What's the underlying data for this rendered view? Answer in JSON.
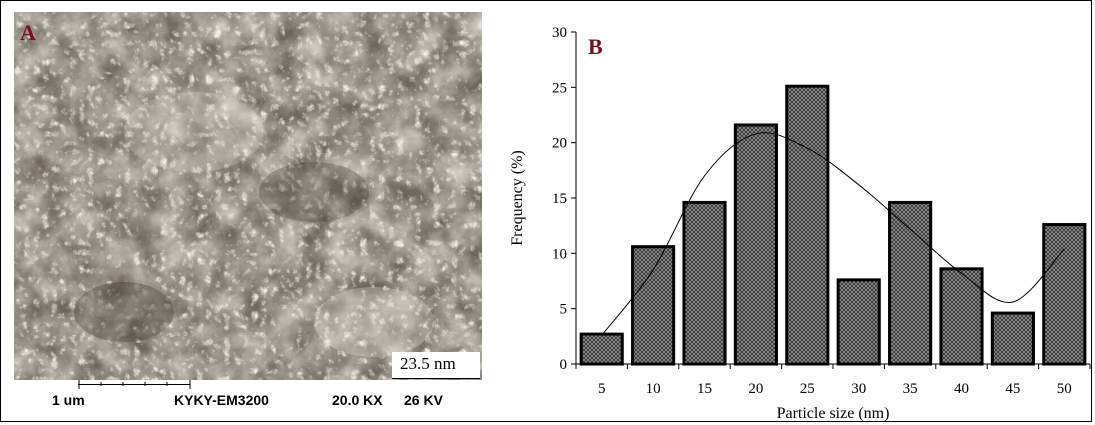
{
  "panel_a": {
    "label": "A",
    "measurement": "23.5 nm",
    "scale_label": "1 um",
    "instrument": "KYKY-EM3200",
    "magnification": "20.0 KX",
    "voltage": "26 KV"
  },
  "chart_data": {
    "type": "bar",
    "panel_label": "B",
    "categories": [
      "5",
      "10",
      "15",
      "20",
      "25",
      "30",
      "35",
      "40",
      "45",
      "50"
    ],
    "values": [
      2.7,
      10.6,
      14.6,
      21.6,
      25.1,
      7.6,
      14.6,
      8.6,
      4.6,
      12.6
    ],
    "fit_curve": {
      "x": [
        5,
        10,
        15,
        20,
        25,
        30,
        35,
        40,
        45,
        50
      ],
      "y": [
        2.6,
        8.5,
        17.0,
        20.8,
        19.5,
        16.2,
        12.2,
        8.2,
        5.6,
        10.4
      ]
    },
    "xlabel": "Particle size (nm)",
    "ylabel": "Frequency (%)",
    "ylim": [
      0,
      30
    ],
    "yticks": [
      "0",
      "5",
      "10",
      "15",
      "20",
      "25",
      "30"
    ],
    "grid": false,
    "legend": "none",
    "colors": {
      "bar_fill": "#555555",
      "bar_stroke": "#000000",
      "label": "#7b1020"
    }
  }
}
